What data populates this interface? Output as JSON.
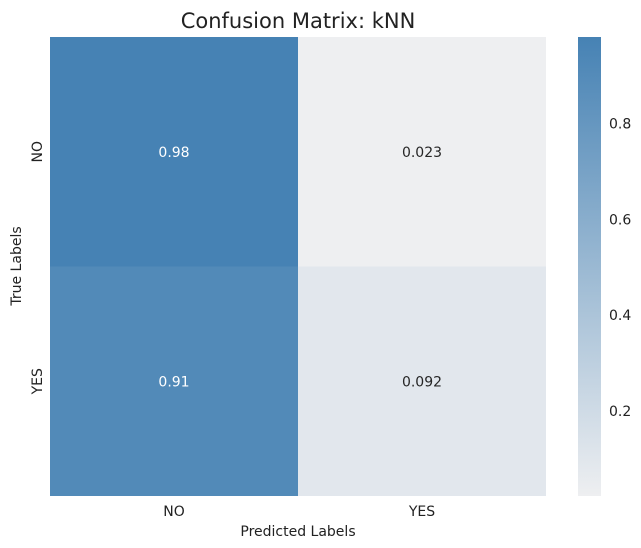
{
  "chart_data": {
    "type": "heatmap",
    "title": "Confusion Matrix: kNN",
    "xlabel": "Predicted Labels",
    "ylabel": "True Labels",
    "x_categories": [
      "NO",
      "YES"
    ],
    "y_categories": [
      "NO",
      "YES"
    ],
    "values": [
      [
        0.98,
        0.023
      ],
      [
        0.91,
        0.092
      ]
    ],
    "cell_labels": [
      [
        "0.98",
        "0.023"
      ],
      [
        "0.91",
        "0.092"
      ]
    ],
    "colorbar": {
      "ticks": [
        0.2,
        0.4,
        0.6,
        0.8
      ],
      "tick_labels": [
        "0.2",
        "0.4",
        "0.6",
        "0.8"
      ],
      "range": [
        0.023,
        0.98
      ]
    },
    "colors": {
      "low": "#eeeff1",
      "high": "#4682b4",
      "text_light": "#ffffff",
      "text_dark": "#262626"
    },
    "grid": false
  }
}
